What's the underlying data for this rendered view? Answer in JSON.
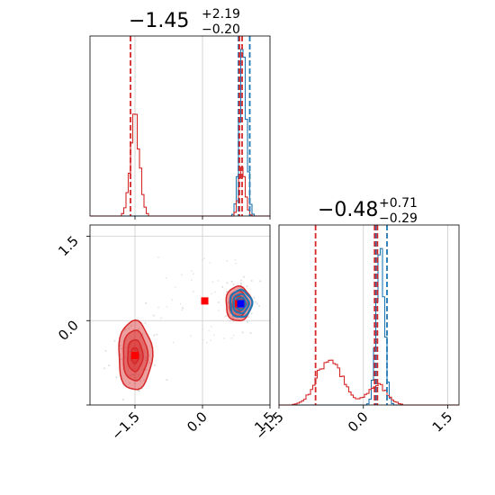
{
  "chart_data": {
    "type": "corner",
    "params": [
      {
        "title": {
          "base": "−1.45",
          "plus": "+2.19",
          "minus": "−0.20"
        },
        "range": [
          -2.5,
          1.5
        ],
        "red": {
          "quantile_lines": [
            -1.6,
            0.82,
            0.88
          ],
          "hist_peaks": [
            {
              "center": -1.5,
              "width": 0.1,
              "height": 0.6
            },
            {
              "center": 0.88,
              "width": 0.07,
              "height": 0.28
            }
          ]
        },
        "blue": {
          "quantile_lines": [
            0.8,
            1.05
          ],
          "hist_peaks": [
            {
              "center": 0.9,
              "width": 0.075,
              "height": 1.0
            }
          ]
        }
      },
      {
        "title": {
          "base": "−0.48",
          "plus": "+0.71",
          "minus": "−0.29"
        },
        "range": [
          -1.5,
          1.7
        ],
        "red": {
          "quantile_lines": [
            -0.85,
            0.2,
            0.25
          ],
          "hist_peaks": [
            {
              "center": -0.6,
              "width": 0.22,
              "height": 0.28
            },
            {
              "center": 0.25,
              "width": 0.17,
              "height": 0.12
            }
          ]
        },
        "blue": {
          "quantile_lines": [
            0.22,
            0.42
          ],
          "hist_peaks": [
            {
              "center": 0.3,
              "width": 0.07,
              "height": 1.0
            }
          ]
        }
      }
    ],
    "scatter_2d": {
      "red_modes": [
        {
          "x": -1.5,
          "y": -0.62,
          "sx": 0.17,
          "sy": 0.28
        },
        {
          "x": 0.8,
          "y": 0.3,
          "sx": 0.13,
          "sy": 0.14
        }
      ],
      "blue_modes": [
        {
          "x": 0.85,
          "y": 0.3,
          "sx": 0.1,
          "sy": 0.1
        }
      ],
      "red_markers": [
        {
          "x": 0.05,
          "y": 0.35
        },
        {
          "x": -1.5,
          "y": -0.62
        },
        {
          "x": 0.8,
          "y": 0.3
        }
      ],
      "blue_marker": {
        "x": 0.85,
        "y": 0.3
      }
    },
    "ticks": [
      {
        "value": -1.5,
        "label": "−1.5"
      },
      {
        "value": 0.0,
        "label": "0.0"
      },
      {
        "value": 1.5,
        "label": "1.5"
      }
    ],
    "colors": {
      "red": "#d62728",
      "blue": "#1f77b4",
      "grid": "#cccccc",
      "marker_red": "#ff0000",
      "marker_blue": "#0000ff"
    },
    "grid": true
  }
}
